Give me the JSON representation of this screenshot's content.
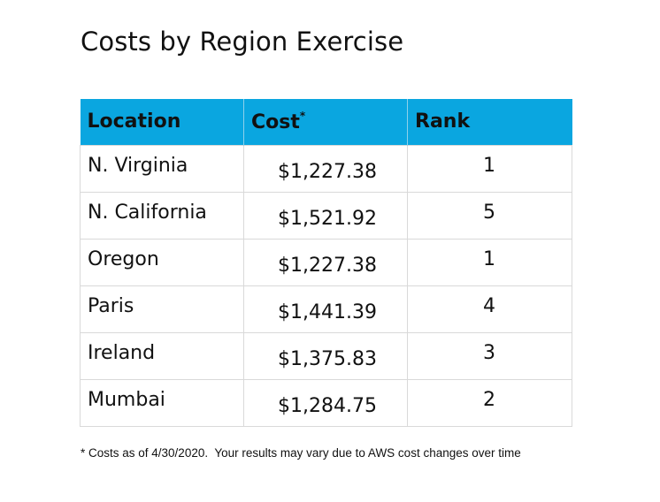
{
  "title": "Costs by Region Exercise",
  "table": {
    "header_color": "#0aa6e0",
    "columns": {
      "location": "Location",
      "cost": "Cost",
      "cost_marker": "*",
      "rank": "Rank"
    },
    "rows": [
      {
        "location": "N. Virginia",
        "cost": "$1,227.38",
        "rank": "1"
      },
      {
        "location": "N. California",
        "cost": "$1,521.92",
        "rank": "5"
      },
      {
        "location": "Oregon",
        "cost": "$1,227.38",
        "rank": "1"
      },
      {
        "location": "Paris",
        "cost": "$1,441.39",
        "rank": "4"
      },
      {
        "location": "Ireland",
        "cost": "$1,375.83",
        "rank": "3"
      },
      {
        "location": "Mumbai",
        "cost": "$1,284.75",
        "rank": "2"
      }
    ]
  },
  "footnote": "* Costs as of 4/30/2020.  Your results may vary due to AWS cost changes over time"
}
